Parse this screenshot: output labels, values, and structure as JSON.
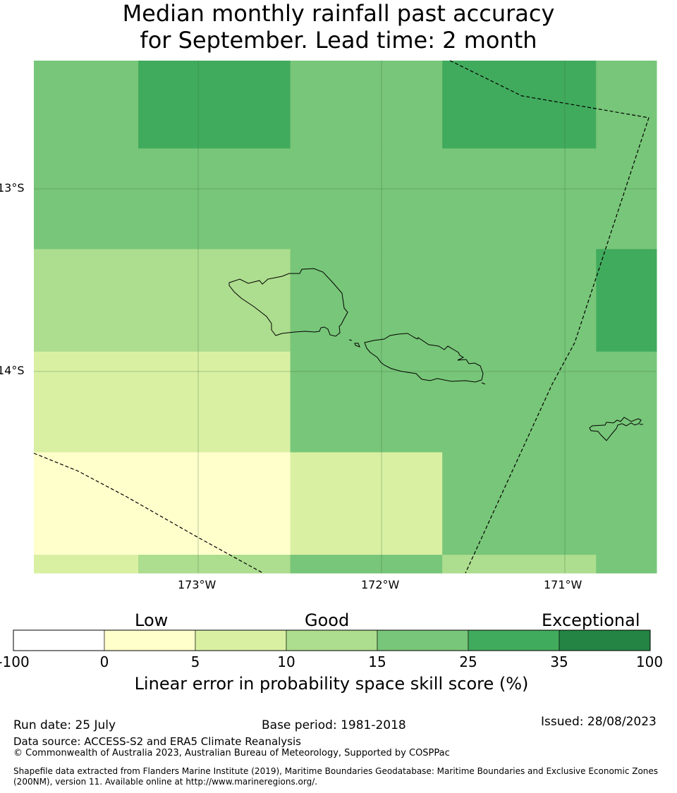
{
  "title": {
    "line1": "Median monthly rainfall past accuracy",
    "line2": "for September. Lead time: 2 month"
  },
  "map": {
    "lat_labels": [
      "13°S",
      "14°S"
    ],
    "lon_labels": [
      "173°W",
      "172°W",
      "171°W"
    ],
    "grid": true,
    "skill_grid": {
      "lon_edges": [
        -173.9,
        -173.33,
        -172.5,
        -171.67,
        -170.83,
        -170.5
      ],
      "lat_edges": [
        -12.3,
        -12.78,
        -13.33,
        -13.89,
        -14.44,
        -15.0,
        -15.1
      ],
      "rows_north_to_south": [
        [
          "15-25",
          "25-35",
          "15-25",
          "25-35",
          "15-25"
        ],
        [
          "15-25",
          "15-25",
          "15-25",
          "15-25",
          "15-25"
        ],
        [
          "10-15",
          "10-15",
          "15-25",
          "15-25",
          "25-35"
        ],
        [
          "5-10",
          "5-10",
          "15-25",
          "15-25",
          "15-25"
        ],
        [
          "0-5",
          "0-5",
          "5-10",
          "15-25",
          "15-25"
        ],
        [
          "5-10",
          "10-15",
          "15-25",
          "10-15",
          "15-25"
        ]
      ]
    },
    "islands": [
      "Savai'i",
      "Upolu",
      "Tutuila"
    ],
    "boundaries": "maritime boundaries (dashed)"
  },
  "colorbar": {
    "category_labels": [
      "Low",
      "Good",
      "Exceptional"
    ],
    "ticks": [
      "-100",
      "0",
      "5",
      "10",
      "15",
      "25",
      "35",
      "100"
    ],
    "colors": [
      "#ffffff",
      "#ffffcc",
      "#d9f0a3",
      "#addd8e",
      "#78c679",
      "#41ab5d",
      "#238443"
    ],
    "title": "Linear error in probability space skill score (%)"
  },
  "footer": {
    "run_date": "Run date: 25 July",
    "base_period": "Base period: 1981-2018",
    "issued": "Issued: 28/08/2023",
    "data_source": "Data source: ACCESS-S2 and ERA5 Climate Reanalysis",
    "copyright": "© Commonwealth of Australia 2023, Australian Bureau of Meteorology, Supported by COSPPac",
    "shapefile_line1": "Shapefile data extracted from Flanders Marine Institute (2019), Maritime Boundaries Geodatabase: Maritime Boundaries and Exclusive Economic Zones",
    "shapefile_line2": "(200NM), version 11. Available online at http://www.marineregions.org/."
  }
}
